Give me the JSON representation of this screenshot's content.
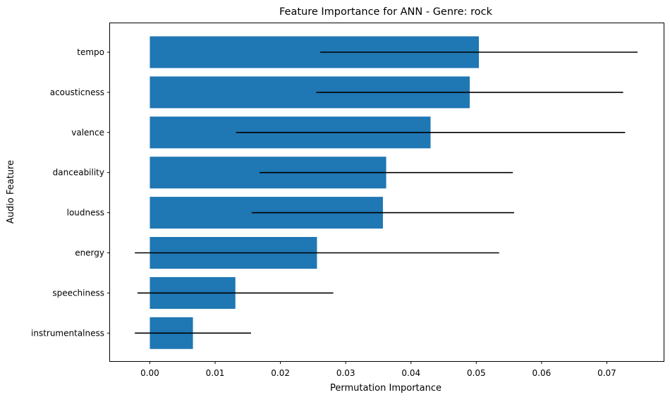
{
  "chart_data": {
    "type": "bar",
    "orientation": "horizontal",
    "title": "Feature Importance for ANN - Genre: rock",
    "xlabel": "Permutation Importance",
    "ylabel": "Audio Feature",
    "xlim": [
      -0.0061,
      0.0787
    ],
    "x_ticks": [
      0.0,
      0.01,
      0.02,
      0.03,
      0.04,
      0.05,
      0.06,
      0.07
    ],
    "x_tick_labels": [
      "0.00",
      "0.01",
      "0.02",
      "0.03",
      "0.04",
      "0.05",
      "0.06",
      "0.07"
    ],
    "categories": [
      "tempo",
      "acousticness",
      "valence",
      "danceability",
      "loudness",
      "energy",
      "speechiness",
      "instrumentalness"
    ],
    "values": [
      0.0504,
      0.049,
      0.043,
      0.0362,
      0.0357,
      0.0256,
      0.0131,
      0.0066
    ],
    "error": [
      0.0243,
      0.0235,
      0.0298,
      0.0194,
      0.0201,
      0.0279,
      0.015,
      0.0089
    ],
    "bar_color": "#1f77b4",
    "error_color": "#000000",
    "grid": false,
    "legend": "none"
  }
}
